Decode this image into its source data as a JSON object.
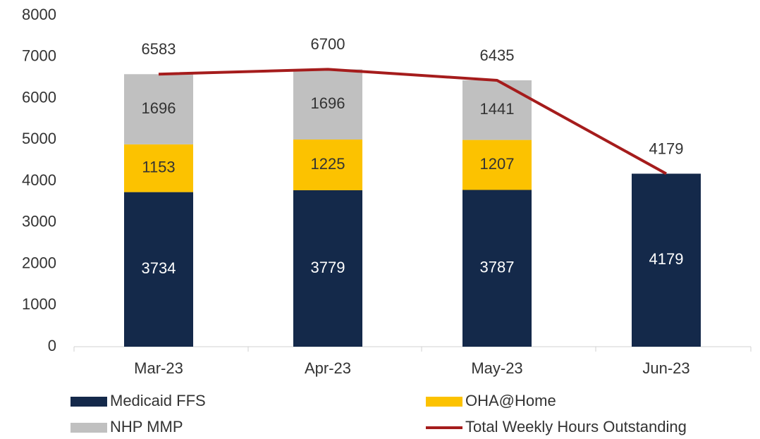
{
  "chart_data": {
    "type": "bar",
    "stacked": true,
    "categories": [
      "Mar-23",
      "Apr-23",
      "May-23",
      "Jun-23"
    ],
    "series": [
      {
        "name": "Medicaid FFS",
        "type": "bar",
        "color": "#14294a",
        "label_color": "#ffffff",
        "values": [
          3734,
          3779,
          3787,
          4179
        ]
      },
      {
        "name": "OHA@Home",
        "type": "bar",
        "color": "#fcc200",
        "label_color": "#333333",
        "values": [
          1153,
          1225,
          1207,
          null
        ]
      },
      {
        "name": "NHP MMP",
        "type": "bar",
        "color": "#c0c0c0",
        "label_color": "#333333",
        "values": [
          1696,
          1696,
          1441,
          null
        ]
      },
      {
        "name": "Total Weekly Hours Outstanding",
        "type": "line",
        "color": "#a51c1c",
        "label_color": "#333333",
        "values": [
          6583,
          6700,
          6435,
          4179
        ]
      }
    ],
    "ylim": [
      0,
      8000
    ],
    "yticks": [
      0,
      1000,
      2000,
      3000,
      4000,
      5000,
      6000,
      7000,
      8000
    ],
    "grid": false
  }
}
